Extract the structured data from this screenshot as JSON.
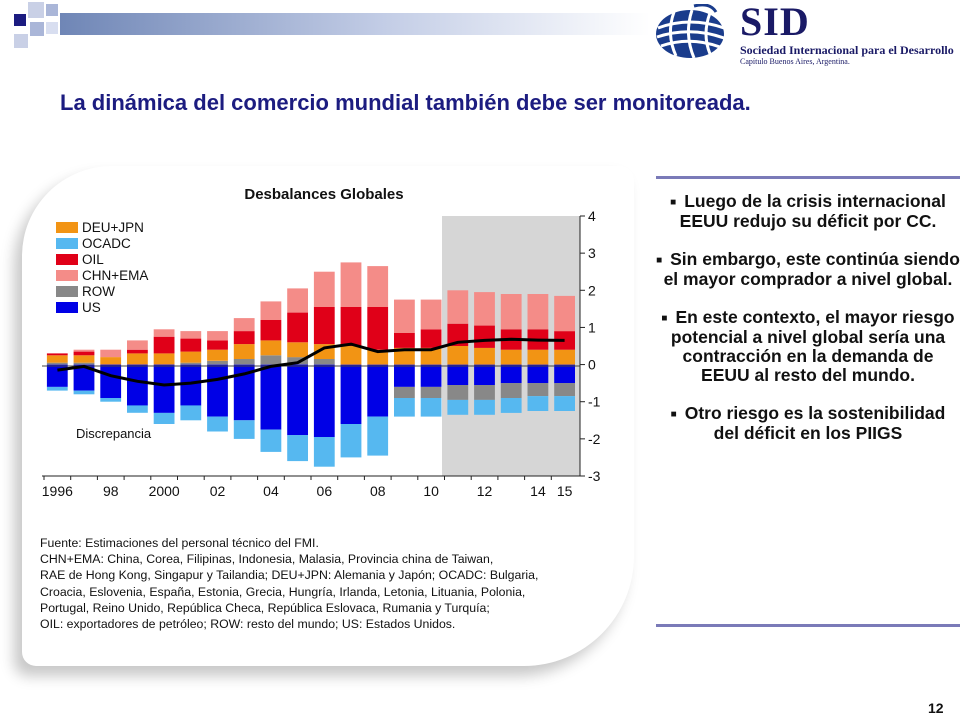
{
  "slide": {
    "title": "La dinámica del comercio mundial también debe ser monitoreada.",
    "number": "12"
  },
  "logo": {
    "name": "SID",
    "organization": "Sociedad Internacional para el Desarrollo",
    "chapter": "Capítulo Buenos Aires, Argentina."
  },
  "chart_data": {
    "type": "bar",
    "stacked": true,
    "title": "Desbalances Globales",
    "xlabel": "",
    "ylabel": "",
    "x": [
      1996,
      1997,
      1998,
      1999,
      2000,
      2001,
      2002,
      2003,
      2004,
      2005,
      2006,
      2007,
      2008,
      2009,
      2010,
      2011,
      2012,
      2013,
      2014,
      2015
    ],
    "x_tick_labels": [
      "1996",
      "98",
      "2000",
      "02",
      "04",
      "06",
      "08",
      "10",
      "12",
      "14",
      "15"
    ],
    "x_ticks": [
      1996,
      1998,
      2000,
      2002,
      2004,
      2006,
      2008,
      2010,
      2012,
      2014,
      2015
    ],
    "ylim": [
      -3,
      4
    ],
    "y_ticks": [
      4,
      3,
      2,
      1,
      0,
      -1,
      -2,
      -3
    ],
    "y_axis_position": "right",
    "projection_shading": "2011-2015",
    "legend_position": "top-left",
    "series": [
      {
        "name": "DEU+JPN",
        "color": "#f29414",
        "values": [
          0.2,
          0.2,
          0.2,
          0.3,
          0.3,
          0.3,
          0.3,
          0.4,
          0.4,
          0.4,
          0.4,
          0.5,
          0.4,
          0.45,
          0.45,
          0.5,
          0.45,
          0.4,
          0.4,
          0.4
        ]
      },
      {
        "name": "OCADC",
        "color": "#56b8f0",
        "values": [
          -0.1,
          -0.1,
          -0.1,
          -0.2,
          -0.3,
          -0.4,
          -0.4,
          -0.5,
          -0.6,
          -0.7,
          -0.8,
          -0.9,
          -1.05,
          -0.5,
          -0.5,
          -0.4,
          -0.4,
          -0.4,
          -0.4,
          -0.4
        ]
      },
      {
        "name": "OIL",
        "color": "#e00018",
        "values": [
          0.05,
          0.1,
          0.0,
          0.1,
          0.45,
          0.35,
          0.25,
          0.35,
          0.55,
          0.8,
          1.0,
          1.05,
          1.15,
          0.4,
          0.5,
          0.6,
          0.6,
          0.55,
          0.55,
          0.5
        ]
      },
      {
        "name": "CHN+EMA",
        "color": "#f48c88",
        "values": [
          0.0,
          0.05,
          0.2,
          0.25,
          0.2,
          0.2,
          0.25,
          0.35,
          0.5,
          0.65,
          0.95,
          1.2,
          1.1,
          0.9,
          0.8,
          0.9,
          0.9,
          0.95,
          0.95,
          0.95
        ]
      },
      {
        "name": "ROW",
        "color": "#888888",
        "values": [
          0.05,
          0.05,
          0.0,
          0.0,
          0.0,
          0.05,
          0.1,
          0.15,
          0.25,
          0.2,
          0.15,
          0.0,
          0.0,
          -0.3,
          -0.3,
          -0.4,
          -0.4,
          -0.4,
          -0.35,
          -0.35
        ]
      },
      {
        "name": "US",
        "color": "#0000e6",
        "values": [
          -0.6,
          -0.7,
          -0.9,
          -1.1,
          -1.3,
          -1.1,
          -1.4,
          -1.5,
          -1.75,
          -1.9,
          -1.95,
          -1.6,
          -1.4,
          -0.6,
          -0.6,
          -0.55,
          -0.55,
          -0.5,
          -0.5,
          -0.5
        ]
      }
    ],
    "annotations": [
      {
        "text": "Discrepancia",
        "target_series": "discrepancy"
      }
    ],
    "discrepancy": {
      "color": "#000000",
      "values": [
        -0.15,
        -0.05,
        -0.3,
        -0.45,
        -0.55,
        -0.5,
        -0.4,
        -0.25,
        -0.05,
        0.05,
        0.45,
        0.55,
        0.35,
        0.4,
        0.4,
        0.6,
        0.65,
        0.68,
        0.66,
        0.65
      ]
    }
  },
  "source_note": [
    "Fuente: Estimaciones del personal técnico del FMI.",
    "CHN+EMA: China, Corea, Filipinas, Indonesia, Malasia, Provincia china de Taiwan,",
    "RAE de Hong Kong, Singapur y Tailandia; DEU+JPN: Alemania y Japón; OCADC: Bulgaria,",
    "Croacia, Eslovenia, España, Estonia, Grecia, Hungría, Irlanda, Letonia, Lituania, Polonia,",
    "Portugal, Reino Unido, República Checa, República Eslovaca, Rumania y Turquía;",
    "OIL: exportadores de petróleo; ROW: resto del mundo; US: Estados Unidos."
  ],
  "bullets": [
    "Luego de la crisis internacional EEUU redujo su déficit por CC.",
    "Sin embargo, este continúa siendo el mayor comprador a nivel global.",
    "En este contexto, el mayor riesgo potencial a nivel global sería una contracción en la demanda de EEUU al resto del mundo.",
    "Otro riesgo es la sostenibilidad del déficit en los PIIGS"
  ]
}
